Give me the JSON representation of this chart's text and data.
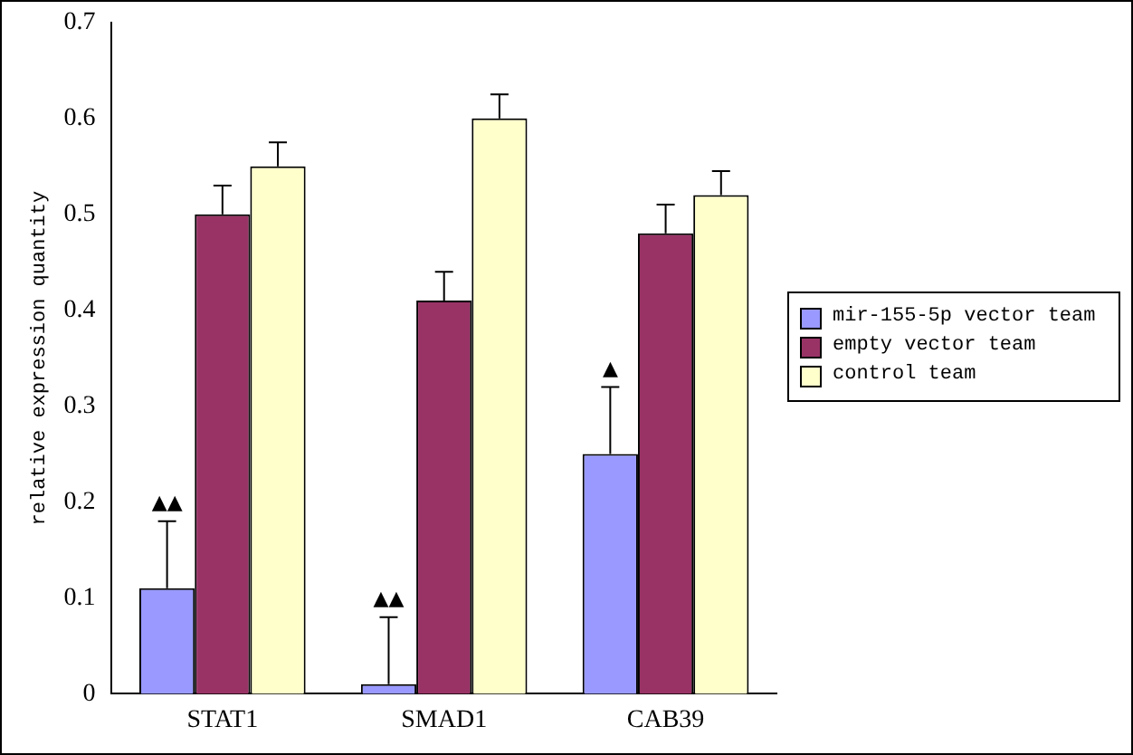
{
  "chart_data": {
    "type": "bar",
    "ylabel": "relative expression quantity",
    "categories": [
      "STAT1",
      "SMAD1",
      "CAB39"
    ],
    "series": [
      {
        "name": "mir-155-5p vector team",
        "color": "#9999ff",
        "values": [
          0.11,
          0.01,
          0.25
        ],
        "errors": [
          [
            0.11,
            0.18
          ],
          [
            0.01,
            0.08
          ],
          [
            0.25,
            0.32
          ]
        ]
      },
      {
        "name": "empty vector team",
        "color": "#993366",
        "values": [
          0.5,
          0.41,
          0.48
        ],
        "errors": [
          [
            0.5,
            0.53
          ],
          [
            0.41,
            0.44
          ],
          [
            0.48,
            0.51
          ]
        ]
      },
      {
        "name": "control team",
        "color": "#ffffcc",
        "values": [
          0.55,
          0.6,
          0.52
        ],
        "errors": [
          [
            0.55,
            0.575
          ],
          [
            0.6,
            0.625
          ],
          [
            0.52,
            0.545
          ]
        ]
      }
    ],
    "annotations": [
      "▲▲",
      "▲▲",
      "▲"
    ],
    "ylim": [
      0,
      0.7
    ],
    "yticks": [
      0,
      0.1,
      0.2,
      0.3,
      0.4,
      0.5,
      0.6,
      0.7
    ],
    "grid": false,
    "legend": "right"
  }
}
